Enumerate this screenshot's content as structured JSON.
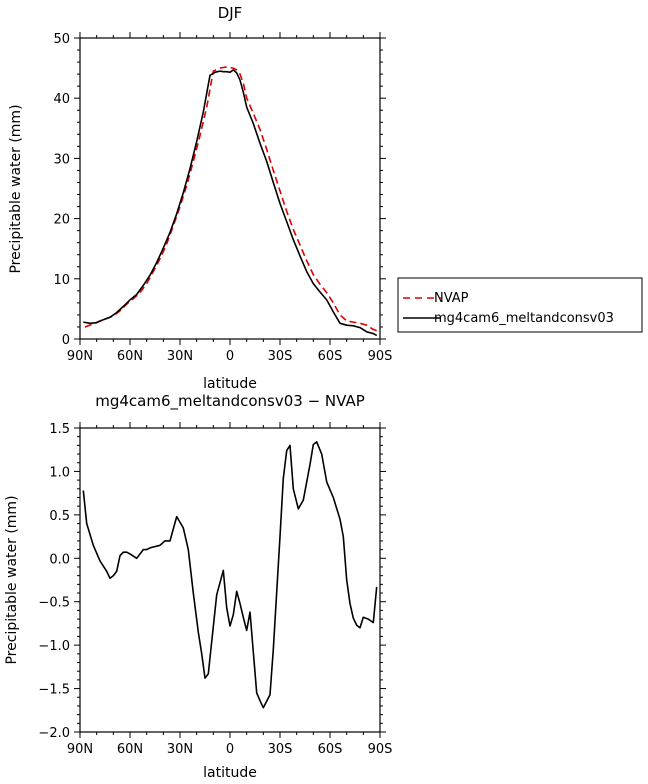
{
  "chart_data": [
    {
      "type": "line",
      "title": "DJF",
      "xlabel": "latitude",
      "ylabel": "Precipitable water (mm)",
      "xlim": [
        90,
        -90
      ],
      "ylim": [
        0,
        50
      ],
      "x_ticks": [
        90,
        60,
        30,
        0,
        -30,
        -60,
        -90
      ],
      "x_tick_labels": [
        "90N",
        "60N",
        "30N",
        "0",
        "30S",
        "60S",
        "90S"
      ],
      "y_ticks": [
        0,
        10,
        20,
        30,
        40,
        50
      ],
      "y_tick_labels": [
        "0",
        "10",
        "20",
        "30",
        "40",
        "50"
      ],
      "legend": "outside-right",
      "series": [
        {
          "name": "NVAP",
          "color": "#e00000",
          "dash": "dashed",
          "x": [
            87,
            82,
            78,
            74,
            70,
            66,
            62,
            58,
            54,
            50,
            46,
            42,
            38,
            34,
            30,
            26,
            22,
            18,
            14,
            10,
            6,
            4,
            2,
            0,
            -2,
            -4,
            -6,
            -8,
            -10,
            -14,
            -18,
            -22,
            -26,
            -30,
            -34,
            -38,
            -42,
            -46,
            -50,
            -54,
            -58,
            -62,
            -66,
            -70,
            -74,
            -78,
            -82,
            -86,
            -88
          ],
          "y": [
            2.0,
            2.5,
            3.0,
            3.4,
            3.8,
            4.7,
            5.8,
            6.7,
            7.7,
            9.2,
            11.2,
            13.3,
            15.8,
            18.8,
            22.0,
            25.5,
            29.5,
            33.8,
            38.5,
            44.5,
            45.0,
            45.1,
            45.2,
            45.1,
            45.0,
            44.7,
            44.0,
            42.5,
            40.0,
            37.5,
            34.8,
            31.5,
            28.0,
            24.6,
            21.2,
            18.2,
            15.6,
            13.0,
            10.7,
            9.1,
            7.7,
            6.0,
            4.0,
            3.0,
            2.8,
            2.6,
            2.3,
            1.6,
            1.4
          ]
        },
        {
          "name": "mg4cam6_meltandconsv03",
          "color": "#000000",
          "dash": "solid",
          "x": [
            88,
            84,
            80,
            76,
            72,
            68,
            64,
            60,
            56,
            52,
            48,
            44,
            40,
            36,
            32,
            28,
            24,
            20,
            16,
            12,
            9,
            6,
            4,
            2,
            0,
            -2,
            -4,
            -6,
            -8,
            -10,
            -14,
            -18,
            -22,
            -26,
            -30,
            -34,
            -38,
            -42,
            -46,
            -50,
            -54,
            -58,
            -62,
            -66,
            -70,
            -74,
            -78,
            -82,
            -86,
            -88
          ],
          "y": [
            2.8,
            2.6,
            2.7,
            3.2,
            3.6,
            4.4,
            5.4,
            6.5,
            7.4,
            8.9,
            10.6,
            12.7,
            15.1,
            17.7,
            20.8,
            24.3,
            28.3,
            32.8,
            37.7,
            43.8,
            44.3,
            44.5,
            44.4,
            44.4,
            44.3,
            44.7,
            44.2,
            43.0,
            41.0,
            38.5,
            35.8,
            32.5,
            29.5,
            26.0,
            22.5,
            19.5,
            16.5,
            13.8,
            11.2,
            9.2,
            7.8,
            6.5,
            4.5,
            2.6,
            2.3,
            2.2,
            1.9,
            1.2,
            0.9,
            0.6
          ]
        }
      ]
    },
    {
      "type": "line",
      "title": "mg4cam6_meltandconsv03 − NVAP",
      "xlabel": "latitude",
      "ylabel": "Precipitable water (mm)",
      "xlim": [
        90,
        -90
      ],
      "ylim": [
        -2.0,
        1.5
      ],
      "x_ticks": [
        90,
        60,
        30,
        0,
        -30,
        -60,
        -90
      ],
      "x_tick_labels": [
        "90N",
        "60N",
        "30N",
        "0",
        "30S",
        "60S",
        "90S"
      ],
      "y_ticks": [
        -2.0,
        -1.5,
        -1.0,
        -0.5,
        0.0,
        0.5,
        1.0,
        1.5
      ],
      "y_tick_labels": [
        "−2.0",
        "−1.5",
        "−1.0",
        "−0.5",
        "0.0",
        "0.5",
        "1.0",
        "1.5"
      ],
      "series": [
        {
          "color": "#000000",
          "dash": "solid",
          "x": [
            88,
            86,
            82,
            78,
            74,
            72,
            70,
            68,
            66,
            64,
            62,
            60,
            56,
            52,
            50,
            48,
            46,
            42,
            39,
            36,
            32,
            28,
            25,
            22,
            19,
            17,
            15,
            13,
            11,
            8,
            4,
            2,
            0,
            -2,
            -4,
            -6,
            -8,
            -10,
            -12,
            -16,
            -18,
            -20,
            -24,
            -26,
            -30,
            -32,
            -34,
            -36,
            -38,
            -41,
            -44,
            -48,
            -50,
            -52,
            -55,
            -58,
            -62,
            -66,
            -68,
            -70,
            -72,
            -74,
            -76,
            -78,
            -80,
            -83,
            -86,
            -88
          ],
          "y": [
            0.78,
            0.4,
            0.15,
            -0.03,
            -0.15,
            -0.23,
            -0.2,
            -0.15,
            0.03,
            0.07,
            0.07,
            0.05,
            0.0,
            0.1,
            0.1,
            0.12,
            0.13,
            0.15,
            0.2,
            0.2,
            0.48,
            0.35,
            0.1,
            -0.4,
            -0.85,
            -1.1,
            -1.38,
            -1.33,
            -0.96,
            -0.42,
            -0.14,
            -0.57,
            -0.78,
            -0.65,
            -0.38,
            -0.52,
            -0.68,
            -0.83,
            -0.62,
            -1.55,
            -1.64,
            -1.72,
            -1.57,
            -1.05,
            0.25,
            0.92,
            1.24,
            1.3,
            0.8,
            0.57,
            0.67,
            1.08,
            1.31,
            1.34,
            1.2,
            0.88,
            0.7,
            0.45,
            0.25,
            -0.25,
            -0.52,
            -0.69,
            -0.77,
            -0.8,
            -0.68,
            -0.7,
            -0.74,
            -0.33
          ]
        }
      ]
    }
  ]
}
